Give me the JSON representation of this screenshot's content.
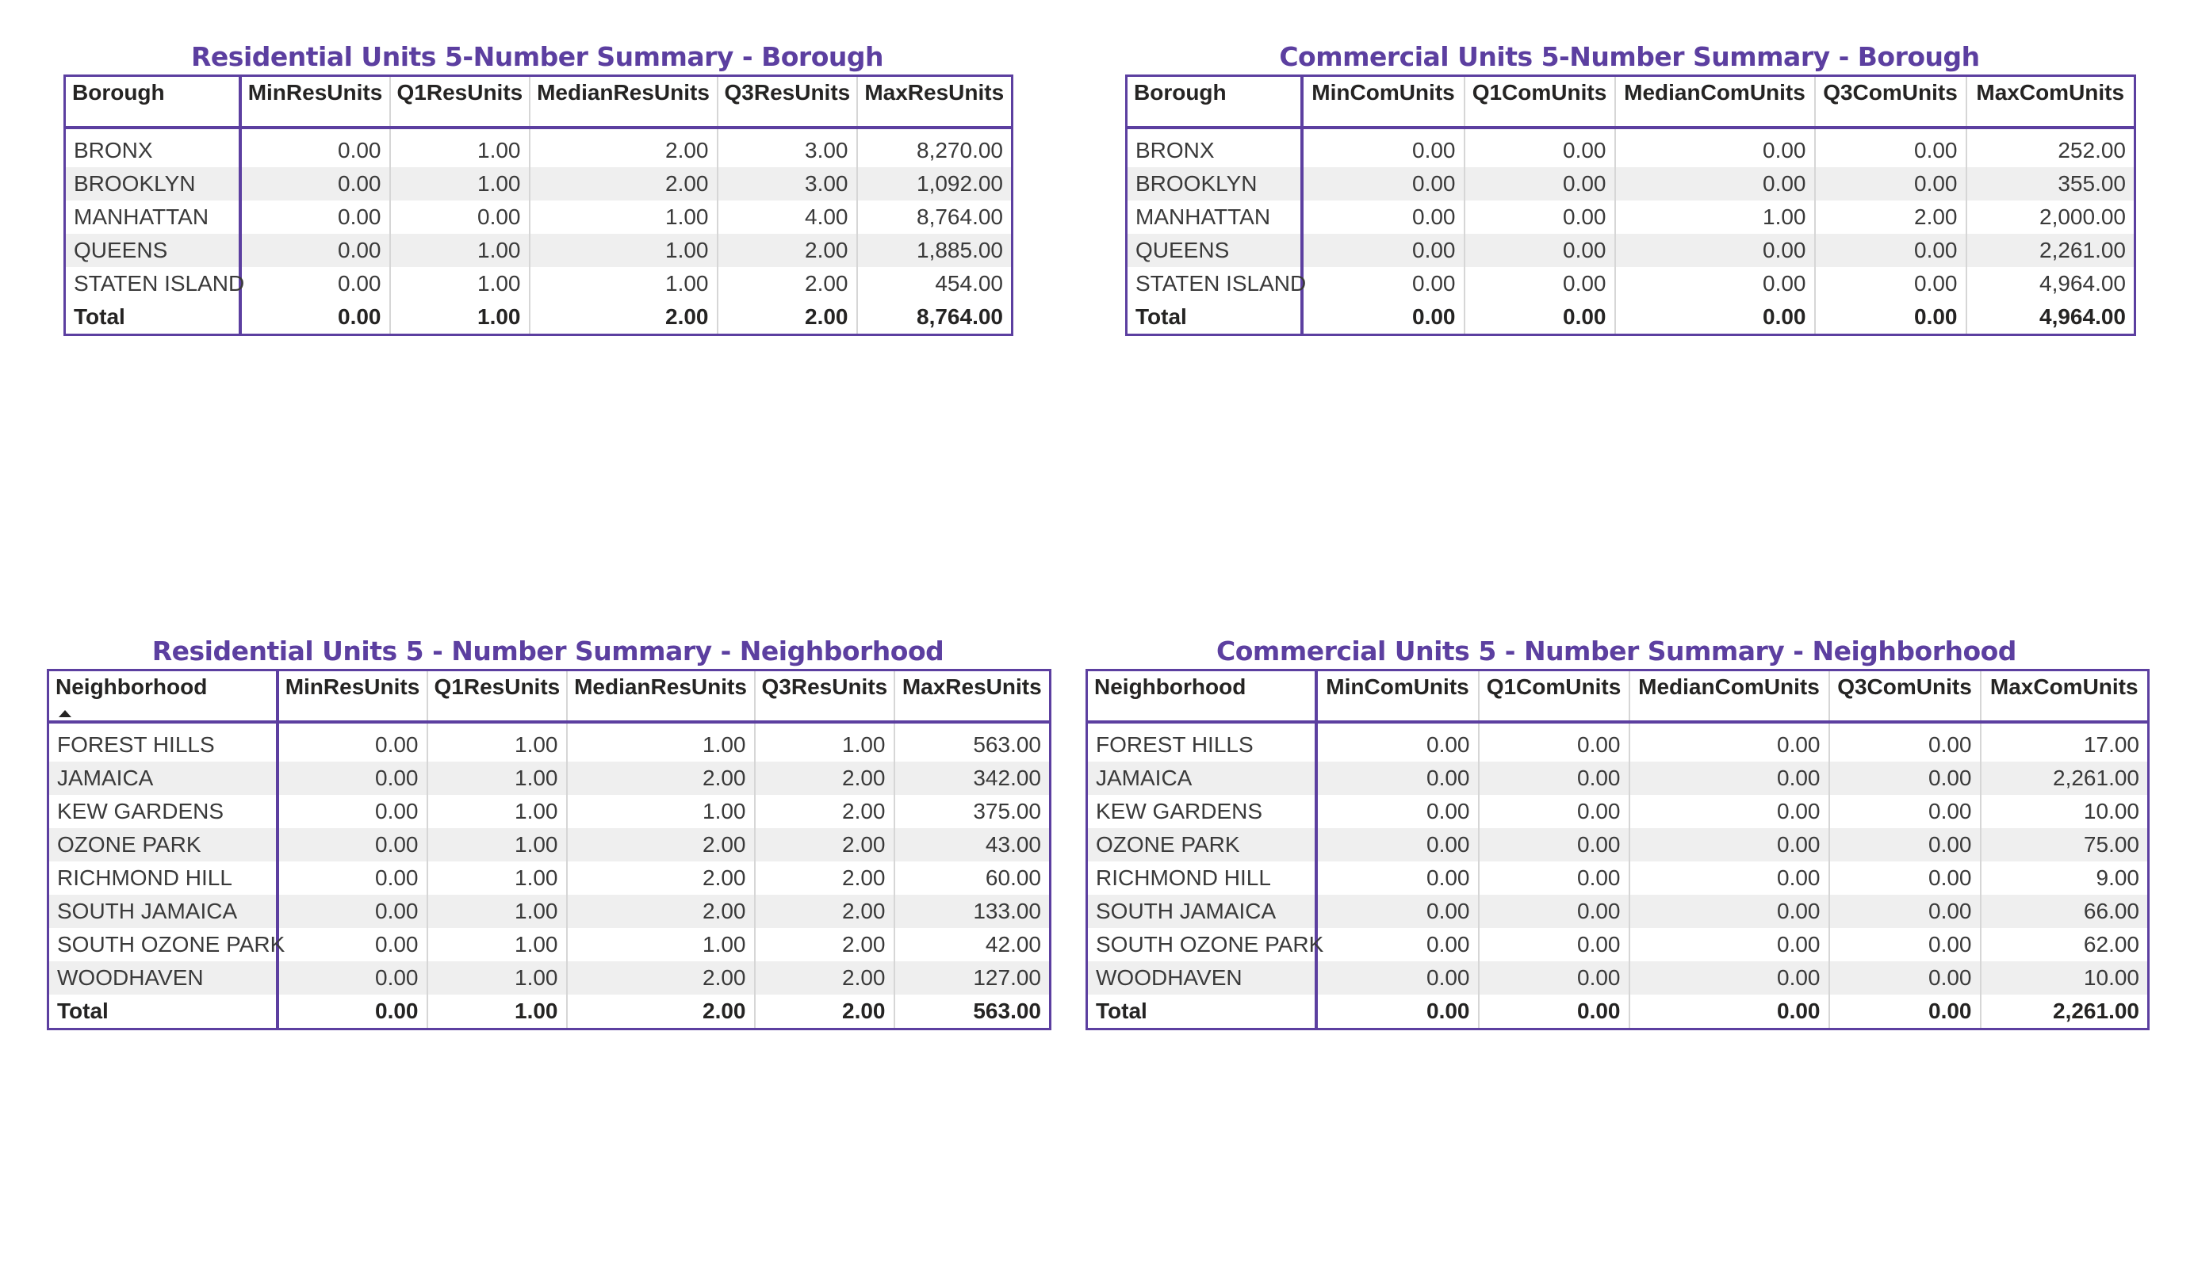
{
  "tables": [
    {
      "title": "Residential Units 5-Number Summary - Borough",
      "headers": [
        "Borough",
        "MinResUnits",
        "Q1ResUnits",
        "MedianResUnits",
        "Q3ResUnits",
        "MaxResUnits"
      ],
      "rows": [
        [
          "BRONX",
          "0.00",
          "1.00",
          "2.00",
          "3.00",
          "8,270.00"
        ],
        [
          "BROOKLYN",
          "0.00",
          "1.00",
          "2.00",
          "3.00",
          "1,092.00"
        ],
        [
          "MANHATTAN",
          "0.00",
          "0.00",
          "1.00",
          "4.00",
          "8,764.00"
        ],
        [
          "QUEENS",
          "0.00",
          "1.00",
          "1.00",
          "2.00",
          "1,885.00"
        ],
        [
          "STATEN ISLAND",
          "0.00",
          "1.00",
          "1.00",
          "2.00",
          "454.00"
        ]
      ],
      "total": [
        "Total",
        "0.00",
        "1.00",
        "2.00",
        "2.00",
        "8,764.00"
      ]
    },
    {
      "title": "Commercial Units 5-Number Summary - Borough",
      "headers": [
        "Borough",
        "MinComUnits",
        "Q1ComUnits",
        "MedianComUnits",
        "Q3ComUnits",
        "MaxComUnits"
      ],
      "rows": [
        [
          "BRONX",
          "0.00",
          "0.00",
          "0.00",
          "0.00",
          "252.00"
        ],
        [
          "BROOKLYN",
          "0.00",
          "0.00",
          "0.00",
          "0.00",
          "355.00"
        ],
        [
          "MANHATTAN",
          "0.00",
          "0.00",
          "1.00",
          "2.00",
          "2,000.00"
        ],
        [
          "QUEENS",
          "0.00",
          "0.00",
          "0.00",
          "0.00",
          "2,261.00"
        ],
        [
          "STATEN ISLAND",
          "0.00",
          "0.00",
          "0.00",
          "0.00",
          "4,964.00"
        ]
      ],
      "total": [
        "Total",
        "0.00",
        "0.00",
        "0.00",
        "0.00",
        "4,964.00"
      ]
    },
    {
      "title": "Residential Units 5 - Number Summary - Neighborhood",
      "headers": [
        "Neighborhood",
        "MinResUnits",
        "Q1ResUnits",
        "MedianResUnits",
        "Q3ResUnits",
        "MaxResUnits"
      ],
      "rows": [
        [
          "FOREST HILLS",
          "0.00",
          "1.00",
          "1.00",
          "1.00",
          "563.00"
        ],
        [
          "JAMAICA",
          "0.00",
          "1.00",
          "2.00",
          "2.00",
          "342.00"
        ],
        [
          "KEW GARDENS",
          "0.00",
          "1.00",
          "1.00",
          "2.00",
          "375.00"
        ],
        [
          "OZONE PARK",
          "0.00",
          "1.00",
          "2.00",
          "2.00",
          "43.00"
        ],
        [
          "RICHMOND HILL",
          "0.00",
          "1.00",
          "2.00",
          "2.00",
          "60.00"
        ],
        [
          "SOUTH JAMAICA",
          "0.00",
          "1.00",
          "2.00",
          "2.00",
          "133.00"
        ],
        [
          "SOUTH OZONE PARK",
          "0.00",
          "1.00",
          "1.00",
          "2.00",
          "42.00"
        ],
        [
          "WOODHAVEN",
          "0.00",
          "1.00",
          "2.00",
          "2.00",
          "127.00"
        ]
      ],
      "total": [
        "Total",
        "0.00",
        "1.00",
        "2.00",
        "2.00",
        "563.00"
      ]
    },
    {
      "title": "Commercial Units 5 - Number Summary - Neighborhood",
      "headers": [
        "Neighborhood",
        "MinComUnits",
        "Q1ComUnits",
        "MedianComUnits",
        "Q3ComUnits",
        "MaxComUnits"
      ],
      "rows": [
        [
          "FOREST HILLS",
          "0.00",
          "0.00",
          "0.00",
          "0.00",
          "17.00"
        ],
        [
          "JAMAICA",
          "0.00",
          "0.00",
          "0.00",
          "0.00",
          "2,261.00"
        ],
        [
          "KEW GARDENS",
          "0.00",
          "0.00",
          "0.00",
          "0.00",
          "10.00"
        ],
        [
          "OZONE PARK",
          "0.00",
          "0.00",
          "0.00",
          "0.00",
          "75.00"
        ],
        [
          "RICHMOND HILL",
          "0.00",
          "0.00",
          "0.00",
          "0.00",
          "9.00"
        ],
        [
          "SOUTH JAMAICA",
          "0.00",
          "0.00",
          "0.00",
          "0.00",
          "66.00"
        ],
        [
          "SOUTH OZONE PARK",
          "0.00",
          "0.00",
          "0.00",
          "0.00",
          "62.00"
        ],
        [
          "WOODHAVEN",
          "0.00",
          "0.00",
          "0.00",
          "0.00",
          "10.00"
        ]
      ],
      "total": [
        "Total",
        "0.00",
        "0.00",
        "0.00",
        "0.00",
        "2,261.00"
      ]
    }
  ],
  "theme": {
    "accent": "#5c3fa0",
    "row_alt": "#efefef",
    "gridline": "#d6d6d6"
  },
  "icons": {
    "sort_indicator": "sort-ascending-icon"
  }
}
